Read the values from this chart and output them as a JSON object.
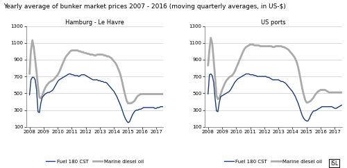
{
  "title": "Yearly average of bunker market prices 2007 - 2016 (moving quarterly averages, in US-$)",
  "title_fontsize": 6.5,
  "left_title": "Hamburg - Le Havre",
  "right_title": "US ports",
  "ylim": [
    100,
    1300
  ],
  "yticks": [
    100,
    300,
    500,
    700,
    900,
    1100,
    1300
  ],
  "xticks": [
    2008,
    2009,
    2010,
    2011,
    2012,
    2013,
    2014,
    2015,
    2016,
    2017
  ],
  "xlim": [
    2007.75,
    2017.5
  ],
  "fuel_color": "#1a3a7a",
  "diesel_color": "#aaaaaa",
  "fuel_lw": 1.0,
  "diesel_lw": 2.0,
  "legend_fuel": "Fuel 180 CST",
  "legend_diesel": "Marine diesel oil",
  "isl_label": "ISL",
  "x_start": 2008.0,
  "x_step": 0.1,
  "left_fuel": [
    480,
    660,
    690,
    690,
    660,
    540,
    280,
    270,
    380,
    450,
    470,
    490,
    500,
    510,
    510,
    520,
    530,
    550,
    580,
    610,
    640,
    660,
    670,
    680,
    690,
    700,
    710,
    720,
    730,
    730,
    720,
    720,
    710,
    710,
    710,
    700,
    710,
    720,
    720,
    720,
    710,
    700,
    690,
    680,
    670,
    660,
    660,
    660,
    660,
    650,
    650,
    640,
    640,
    630,
    630,
    620,
    600,
    580,
    560,
    540,
    520,
    490,
    460,
    420,
    380,
    340,
    290,
    240,
    200,
    170,
    150,
    160,
    200,
    240,
    270,
    290,
    300,
    300,
    310,
    310,
    320,
    330,
    330,
    330,
    330,
    330,
    330,
    330,
    330,
    320,
    320,
    330,
    330,
    340,
    340,
    340
  ],
  "left_diesel": [
    730,
    1010,
    1130,
    1050,
    900,
    750,
    580,
    450,
    440,
    470,
    520,
    560,
    590,
    610,
    630,
    640,
    650,
    660,
    680,
    700,
    720,
    750,
    790,
    830,
    870,
    910,
    940,
    960,
    980,
    1000,
    1010,
    1010,
    1010,
    1010,
    1010,
    1000,
    1000,
    990,
    990,
    980,
    980,
    970,
    970,
    960,
    960,
    960,
    950,
    950,
    960,
    960,
    960,
    960,
    960,
    950,
    950,
    940,
    940,
    930,
    920,
    900,
    880,
    860,
    830,
    790,
    750,
    690,
    620,
    540,
    470,
    410,
    380,
    380,
    380,
    390,
    400,
    420,
    450,
    470,
    480,
    490,
    490,
    490,
    490,
    490,
    490,
    490,
    490,
    490,
    490,
    490,
    490,
    490,
    490,
    490,
    490,
    490
  ],
  "right_fuel": [
    490,
    720,
    730,
    710,
    630,
    440,
    290,
    280,
    390,
    460,
    470,
    480,
    490,
    500,
    510,
    520,
    540,
    570,
    600,
    630,
    650,
    670,
    680,
    690,
    700,
    710,
    720,
    730,
    730,
    730,
    720,
    720,
    720,
    710,
    710,
    700,
    700,
    700,
    700,
    700,
    700,
    700,
    690,
    690,
    680,
    670,
    660,
    660,
    660,
    660,
    660,
    650,
    640,
    640,
    630,
    620,
    600,
    580,
    560,
    540,
    520,
    490,
    460,
    420,
    380,
    330,
    280,
    230,
    200,
    180,
    170,
    170,
    200,
    240,
    270,
    290,
    290,
    300,
    310,
    320,
    330,
    340,
    340,
    340,
    340,
    340,
    340,
    340,
    340,
    330,
    320,
    320,
    330,
    340,
    350,
    360
  ],
  "right_diesel": [
    830,
    1020,
    1160,
    1090,
    900,
    690,
    470,
    430,
    440,
    490,
    540,
    580,
    620,
    650,
    670,
    690,
    700,
    710,
    730,
    760,
    800,
    840,
    880,
    920,
    960,
    1000,
    1030,
    1050,
    1060,
    1070,
    1080,
    1080,
    1080,
    1070,
    1070,
    1070,
    1070,
    1060,
    1060,
    1060,
    1060,
    1060,
    1060,
    1060,
    1060,
    1060,
    1050,
    1050,
    1060,
    1060,
    1060,
    1060,
    1060,
    1050,
    1050,
    1040,
    1030,
    1020,
    1000,
    980,
    960,
    940,
    910,
    870,
    810,
    730,
    640,
    550,
    480,
    420,
    390,
    390,
    400,
    410,
    430,
    450,
    480,
    500,
    520,
    530,
    540,
    540,
    540,
    540,
    530,
    520,
    510,
    510,
    510,
    510,
    510,
    510,
    510,
    510,
    510,
    510
  ]
}
